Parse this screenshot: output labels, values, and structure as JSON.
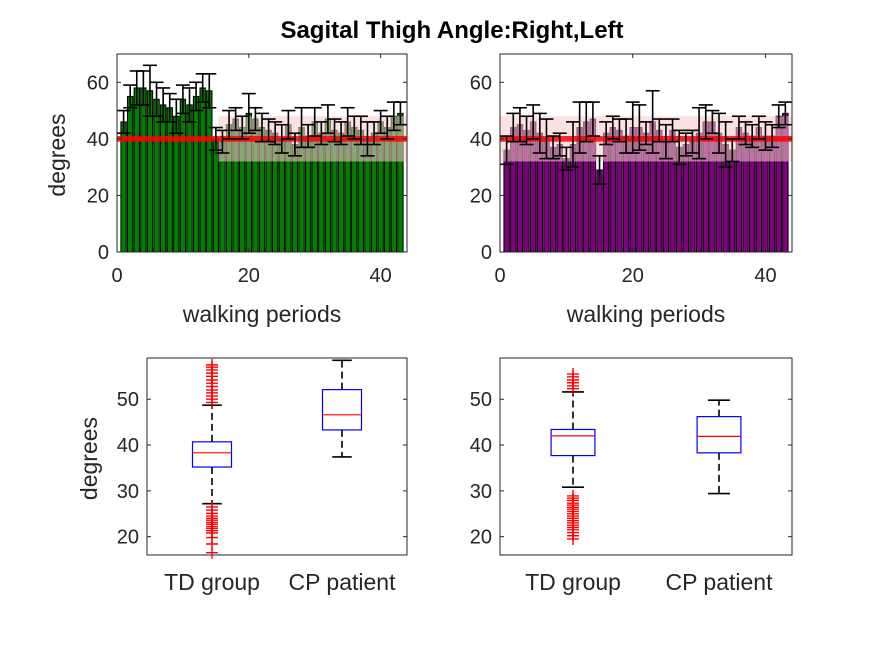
{
  "chart_data": {
    "title": "Sagital Thigh Angle:Right,Left",
    "colors": {
      "right_bars": "#007F00",
      "left_bars": "#800080",
      "td_band": "#F7CBCB",
      "td_mean_line": "#FF0000",
      "box_edge": "#0000FF",
      "median": "#FF0000",
      "whisker": "#000000",
      "outlier": "#FF0000"
    },
    "panels": [
      {
        "type": "bar",
        "side": "right",
        "xlabel": "walking periods",
        "ylabel": "degrees",
        "xlim": [
          0,
          44
        ],
        "ylim": [
          0,
          70
        ],
        "xticks": [
          "0",
          "20",
          "40"
        ],
        "yticks": [
          "0",
          "20",
          "40",
          "60"
        ],
        "td_band": [
          32,
          48
        ],
        "td_mean": [
          39,
          41
        ],
        "x": [
          1,
          2,
          3,
          4,
          5,
          6,
          7,
          8,
          9,
          10,
          11,
          12,
          13,
          14,
          15,
          16,
          17,
          18,
          19,
          20,
          21,
          22,
          23,
          24,
          25,
          26,
          27,
          28,
          29,
          30,
          31,
          32,
          33,
          34,
          35,
          36,
          37,
          38,
          39,
          40,
          41,
          42,
          43
        ],
        "values": [
          46,
          55,
          58,
          58,
          57,
          54,
          52,
          51,
          48,
          54,
          52,
          55,
          58,
          57,
          40,
          39,
          45,
          47,
          44,
          49,
          47,
          44,
          43,
          42,
          40,
          45,
          38,
          44,
          41,
          46,
          42,
          47,
          43,
          42,
          46,
          44,
          43,
          40,
          42,
          46,
          44,
          48,
          49
        ],
        "errors": [
          4,
          4,
          6,
          6,
          9,
          6,
          6,
          5,
          6,
          5,
          6,
          5,
          5,
          6,
          4,
          4,
          5,
          4,
          4,
          7,
          4,
          5,
          4,
          4,
          5,
          5,
          4,
          7,
          4,
          5,
          4,
          5,
          4,
          4,
          5,
          4,
          5,
          6,
          4,
          4,
          4,
          5,
          4
        ]
      },
      {
        "type": "bar",
        "side": "left",
        "xlabel": "walking periods",
        "ylabel": "",
        "xlim": [
          0,
          44
        ],
        "ylim": [
          0,
          70
        ],
        "xticks": [
          "0",
          "20",
          "40"
        ],
        "yticks": [
          "0",
          "20",
          "40",
          "60"
        ],
        "td_band": [
          32,
          48
        ],
        "td_mean": [
          39,
          41
        ],
        "x": [
          1,
          2,
          3,
          4,
          5,
          6,
          7,
          8,
          9,
          10,
          11,
          12,
          13,
          14,
          15,
          16,
          17,
          18,
          19,
          20,
          21,
          22,
          23,
          24,
          25,
          26,
          27,
          28,
          29,
          30,
          31,
          32,
          33,
          34,
          35,
          36,
          37,
          38,
          39,
          40,
          41,
          42,
          43
        ],
        "values": [
          36,
          44,
          45,
          43,
          46,
          42,
          40,
          37,
          38,
          33,
          38,
          44,
          46,
          47,
          29,
          42,
          44,
          43,
          41,
          44,
          44,
          42,
          46,
          43,
          39,
          43,
          37,
          38,
          39,
          42,
          46,
          46,
          42,
          38,
          36,
          44,
          42,
          41,
          44,
          41,
          41,
          48,
          49
        ],
        "errors": [
          5,
          5,
          6,
          5,
          6,
          7,
          7,
          4,
          4,
          4,
          8,
          9,
          7,
          6,
          5,
          4,
          4,
          4,
          6,
          9,
          8,
          4,
          11,
          4,
          6,
          4,
          6,
          4,
          4,
          9,
          6,
          4,
          7,
          8,
          4,
          4,
          4,
          4,
          4,
          5,
          4,
          4,
          4
        ]
      },
      {
        "type": "box",
        "ylabel": "degrees",
        "ylim": [
          16,
          59
        ],
        "yticks": [
          "20",
          "30",
          "40",
          "50"
        ],
        "categories": [
          "TD group",
          "CP patient"
        ],
        "boxes": [
          {
            "q1": 35.2,
            "median": 38.3,
            "q3": 40.7,
            "whisker_low": 27.2,
            "whisker_high": 48.7,
            "outliers": [
              49.3,
              50,
              50.7,
              51.4,
              52,
              52.8,
              53.5,
              54.2,
              55,
              55.7,
              56.4,
              57,
              57.5,
              26.5,
              25.8,
              25.1,
              24.5,
              24,
              23.6,
              23.1,
              22.7,
              22.2,
              21.8,
              21.3,
              20.8,
              19.8,
              18.4,
              16.5
            ]
          },
          {
            "q1": 43.3,
            "median": 46.6,
            "q3": 52.1,
            "whisker_low": 37.4,
            "whisker_high": 58.5,
            "outliers": []
          }
        ]
      },
      {
        "type": "box",
        "ylabel": "",
        "ylim": [
          16,
          59
        ],
        "yticks": [
          "20",
          "30",
          "40",
          "50"
        ],
        "categories": [
          "TD group",
          "CP patient"
        ],
        "boxes": [
          {
            "q1": 37.7,
            "median": 42.0,
            "q3": 43.4,
            "whisker_low": 30.8,
            "whisker_high": 51.6,
            "outliers": [
              52.3,
              52.9,
              53.6,
              54.2,
              54.9,
              55.5,
              28.9,
              28.4,
              27.9,
              27.3,
              26.9,
              26.4,
              26,
              25.5,
              25,
              24.5,
              24,
              23.5,
              23,
              22.5,
              22,
              21.5,
              20.9,
              20.2,
              19.5
            ]
          },
          {
            "q1": 38.3,
            "median": 41.9,
            "q3": 46.2,
            "whisker_low": 29.4,
            "whisker_high": 49.8,
            "outliers": []
          }
        ]
      }
    ]
  }
}
